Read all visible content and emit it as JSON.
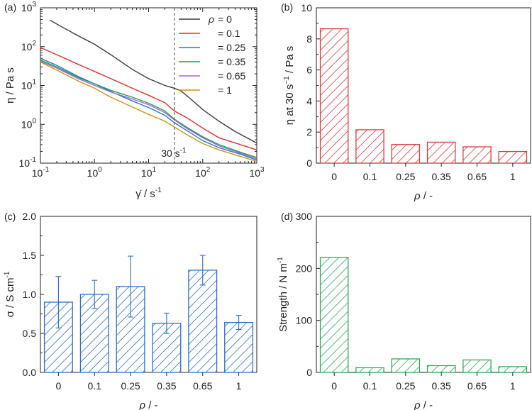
{
  "chart_data": [
    {
      "panel": "(a)",
      "type": "line",
      "scale": "log-log",
      "xlabel_sym": "γ̇",
      "xlabel_rest": "  / s",
      "xlabel_sup": "-1",
      "ylabel": "η / Pa s",
      "xlim": [
        0.1,
        1000
      ],
      "ylim": [
        0.1,
        1000
      ],
      "x_ticks": [
        {
          "v": 0.1,
          "base": "10",
          "exp": "-1"
        },
        {
          "v": 1,
          "base": "10",
          "exp": "0"
        },
        {
          "v": 10,
          "base": "10",
          "exp": "1"
        },
        {
          "v": 100,
          "base": "10",
          "exp": "2"
        },
        {
          "v": 1000,
          "base": "10",
          "exp": "3"
        }
      ],
      "y_ticks": [
        {
          "v": 0.1,
          "base": "10",
          "exp": "-1"
        },
        {
          "v": 1,
          "base": "10",
          "exp": "0"
        },
        {
          "v": 10,
          "base": "10",
          "exp": "1"
        },
        {
          "v": 100,
          "base": "10",
          "exp": "2"
        },
        {
          "v": 1000,
          "base": "10",
          "exp": "3"
        }
      ],
      "vline": {
        "x": 30,
        "label": "30 s",
        "label_sup": "-1"
      },
      "legend_symbol": "ρ",
      "series": [
        {
          "name": "= 0",
          "color": "#3a3a3a",
          "points": [
            [
              0.15,
              480
            ],
            [
              0.3,
              280
            ],
            [
              0.5,
              190
            ],
            [
              1,
              115
            ],
            [
              2,
              62
            ],
            [
              5,
              26
            ],
            [
              10,
              15
            ],
            [
              20,
              10
            ],
            [
              30,
              8.5
            ],
            [
              40,
              7.2
            ],
            [
              60,
              4.5
            ],
            [
              100,
              2.4
            ],
            [
              200,
              1.2
            ],
            [
              400,
              0.65
            ],
            [
              1000,
              0.33
            ]
          ]
        },
        {
          "name": "= 0.1",
          "color": "#e0302e",
          "points": [
            [
              0.1,
              95
            ],
            [
              0.2,
              62
            ],
            [
              0.5,
              35
            ],
            [
              1,
              23
            ],
            [
              2,
              15
            ],
            [
              5,
              8.5
            ],
            [
              10,
              5.6
            ],
            [
              20,
              3.6
            ],
            [
              30,
              2.2
            ],
            [
              50,
              1.5
            ],
            [
              100,
              0.8
            ],
            [
              200,
              0.45
            ],
            [
              500,
              0.3
            ],
            [
              1000,
              0.22
            ]
          ]
        },
        {
          "name": "= 0.25",
          "color": "#2878c8",
          "points": [
            [
              0.1,
              50
            ],
            [
              0.2,
              33
            ],
            [
              0.5,
              17
            ],
            [
              1,
              11
            ],
            [
              2,
              7
            ],
            [
              5,
              4
            ],
            [
              10,
              2.7
            ],
            [
              20,
              1.7
            ],
            [
              30,
              1.1
            ],
            [
              50,
              0.7
            ],
            [
              100,
              0.38
            ],
            [
              200,
              0.25
            ],
            [
              500,
              0.17
            ],
            [
              1000,
              0.12
            ]
          ]
        },
        {
          "name": "= 0.35",
          "color": "#20a050",
          "points": [
            [
              0.1,
              45
            ],
            [
              0.2,
              30
            ],
            [
              0.5,
              16
            ],
            [
              1,
              11
            ],
            [
              2,
              7.5
            ],
            [
              5,
              5
            ],
            [
              10,
              3.5
            ],
            [
              20,
              2.2
            ],
            [
              30,
              1.35
            ],
            [
              50,
              0.85
            ],
            [
              100,
              0.48
            ],
            [
              200,
              0.3
            ],
            [
              500,
              0.19
            ],
            [
              1000,
              0.14
            ]
          ]
        },
        {
          "name": "= 0.65",
          "color": "#a066d6",
          "points": [
            [
              0.1,
              42
            ],
            [
              0.2,
              28
            ],
            [
              0.5,
              15
            ],
            [
              1,
              10
            ],
            [
              2,
              6.8
            ],
            [
              5,
              4.5
            ],
            [
              10,
              3.2
            ],
            [
              20,
              2
            ],
            [
              30,
              1.3
            ],
            [
              50,
              0.8
            ],
            [
              100,
              0.45
            ],
            [
              200,
              0.28
            ],
            [
              500,
              0.18
            ],
            [
              1000,
              0.13
            ]
          ]
        },
        {
          "name": "= 1",
          "color": "#c89414",
          "points": [
            [
              0.1,
              40
            ],
            [
              0.2,
              25
            ],
            [
              0.5,
              13
            ],
            [
              1,
              8.5
            ],
            [
              2,
              5
            ],
            [
              5,
              2.8
            ],
            [
              10,
              1.8
            ],
            [
              20,
              1.2
            ],
            [
              30,
              0.85
            ],
            [
              50,
              0.55
            ],
            [
              100,
              0.32
            ],
            [
              200,
              0.22
            ],
            [
              500,
              0.15
            ],
            [
              1000,
              0.11
            ]
          ]
        }
      ]
    },
    {
      "panel": "(b)",
      "type": "bar",
      "color": "#e03a3a",
      "categories": [
        "0",
        "0.1",
        "0.25",
        "0.35",
        "0.65",
        "1"
      ],
      "values": [
        8.65,
        2.15,
        1.2,
        1.35,
        1.05,
        0.75
      ],
      "ylim": [
        0,
        10
      ],
      "y_ticks": [
        0,
        2,
        4,
        6,
        8,
        10
      ],
      "ylabel_pre": "η at 30 s",
      "ylabel_sup": "−1",
      "ylabel_post": " / Pa s",
      "xlabel_sym": "ρ",
      "xlabel_rest": " / -"
    },
    {
      "panel": "(c)",
      "type": "bar",
      "color": "#2c6fc8",
      "categories": [
        "0",
        "0.1",
        "0.25",
        "0.35",
        "0.65",
        "1"
      ],
      "values": [
        0.9,
        1.0,
        1.1,
        0.63,
        1.31,
        0.64
      ],
      "errors": [
        0.33,
        0.18,
        0.39,
        0.13,
        0.19,
        0.09
      ],
      "ylim": [
        0,
        2
      ],
      "y_ticks": [
        "0.0",
        "0.5",
        "1.0",
        "1.5",
        "2.0"
      ],
      "ylabel_pre": "σ / S cm",
      "ylabel_sup": "-1",
      "ylabel_post": "",
      "xlabel_sym": "ρ",
      "xlabel_rest": " / -"
    },
    {
      "panel": "(d)",
      "type": "bar",
      "color": "#2fa858",
      "categories": [
        "0",
        "0.1",
        "0.25",
        "0.35",
        "0.65",
        "1"
      ],
      "values": [
        221,
        9,
        26,
        13,
        24,
        11
      ],
      "ylim": [
        0,
        300
      ],
      "y_ticks": [
        0,
        100,
        200,
        300
      ],
      "ylabel_pre": "Strength / N m",
      "ylabel_sup": "-1",
      "ylabel_post": "",
      "xlabel_sym": "ρ",
      "xlabel_rest": " / -"
    }
  ]
}
